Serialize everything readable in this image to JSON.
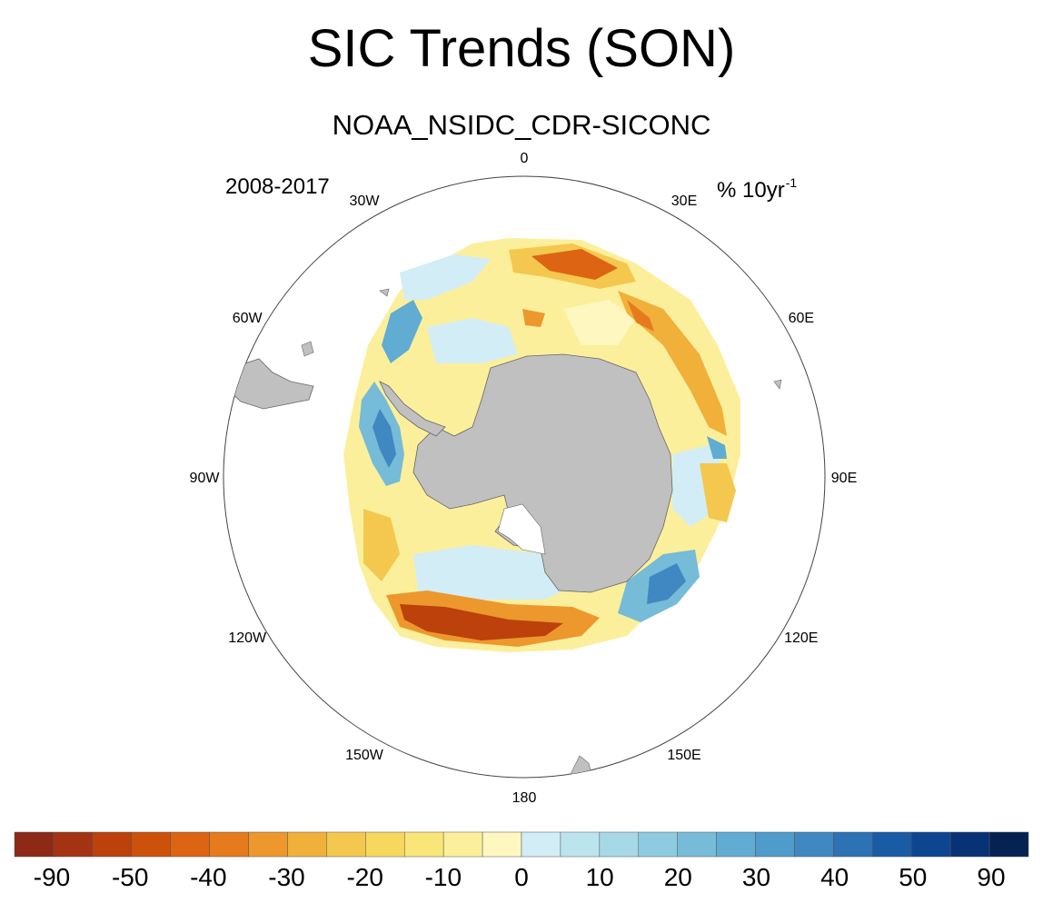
{
  "title": "SIC Trends (SON)",
  "subtitle": "NOAA_NSIDC_CDR-SICONC",
  "period": "2008-2017",
  "units": {
    "base": "% 10yr",
    "exp": "-1"
  },
  "longitude_labels": [
    {
      "lon": 0,
      "label": "0"
    },
    {
      "lon": 30,
      "label": "30E"
    },
    {
      "lon": 60,
      "label": "60E"
    },
    {
      "lon": 90,
      "label": "90E"
    },
    {
      "lon": 120,
      "label": "120E"
    },
    {
      "lon": 150,
      "label": "150E"
    },
    {
      "lon": 180,
      "label": "180"
    },
    {
      "lon": -150,
      "label": "150W"
    },
    {
      "lon": -120,
      "label": "120W"
    },
    {
      "lon": -90,
      "label": "90W"
    },
    {
      "lon": -60,
      "label": "60W"
    },
    {
      "lon": -30,
      "label": "30W"
    }
  ],
  "colorbar": {
    "colors": [
      "#8c2a17",
      "#a33312",
      "#bc410b",
      "#cc520c",
      "#dc6413",
      "#e57b1c",
      "#ec982d",
      "#f0b03a",
      "#f4c84e",
      "#f7d85e",
      "#fae578",
      "#fcef9c",
      "#fef7c0",
      "#d2edf5",
      "#bce4ee",
      "#a6d9e5",
      "#8ecbe0",
      "#76bbd8",
      "#60acd2",
      "#4f9bcc",
      "#3f88c2",
      "#2c72b5",
      "#1a5ba6",
      "#0d4590",
      "#073275",
      "#062252"
    ],
    "labels": [
      "-90",
      "-50",
      "-40",
      "-30",
      "-20",
      "-10",
      "0",
      "10",
      "20",
      "30",
      "40",
      "50",
      "90"
    ]
  }
}
